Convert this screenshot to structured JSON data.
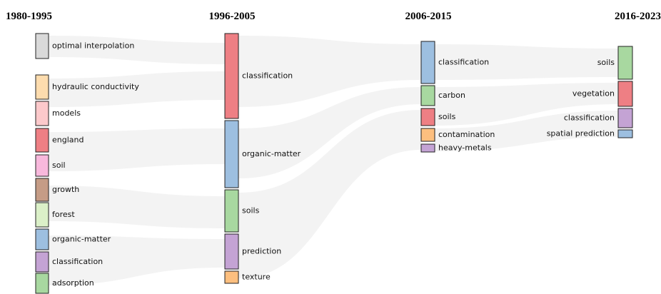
{
  "columns": [
    {
      "title": "1980-1995",
      "nodes": [
        {
          "label": "optimal interpolation",
          "color": "#d9d9d9"
        },
        {
          "label": "hydraulic conductivity",
          "color": "#fddcae"
        },
        {
          "label": "models",
          "color": "#fcc9cb"
        },
        {
          "label": "england",
          "color": "#ee7f84"
        },
        {
          "label": "soil",
          "color": "#f8b8dc"
        },
        {
          "label": "growth",
          "color": "#c59c86"
        },
        {
          "label": "forest",
          "color": "#dbf0c8"
        },
        {
          "label": "organic-matter",
          "color": "#9dbfe0"
        },
        {
          "label": "classification",
          "color": "#c4a3d4"
        },
        {
          "label": "adsorption",
          "color": "#a8d8a0"
        }
      ]
    },
    {
      "title": "1996-2005",
      "nodes": [
        {
          "label": "classification",
          "color": "#ee7f84"
        },
        {
          "label": "organic-matter",
          "color": "#9dbfe0"
        },
        {
          "label": "soils",
          "color": "#a8d8a0"
        },
        {
          "label": "prediction",
          "color": "#c4a3d4"
        },
        {
          "label": "texture",
          "color": "#fdbf7f"
        }
      ]
    },
    {
      "title": "2006-2015",
      "nodes": [
        {
          "label": "classification",
          "color": "#9dbfe0"
        },
        {
          "label": "carbon",
          "color": "#a8d8a0"
        },
        {
          "label": "soils",
          "color": "#ee7f84"
        },
        {
          "label": "contamination",
          "color": "#fdbf7f"
        },
        {
          "label": "heavy-metals",
          "color": "#c4a3d4"
        }
      ]
    },
    {
      "title": "2016-2023",
      "nodes": [
        {
          "label": "soils",
          "color": "#a8d8a0"
        },
        {
          "label": "vegetation",
          "color": "#ee7f84"
        },
        {
          "label": "classification",
          "color": "#c4a3d4"
        },
        {
          "label": "spatial prediction",
          "color": "#9dbfe0"
        }
      ]
    }
  ]
}
